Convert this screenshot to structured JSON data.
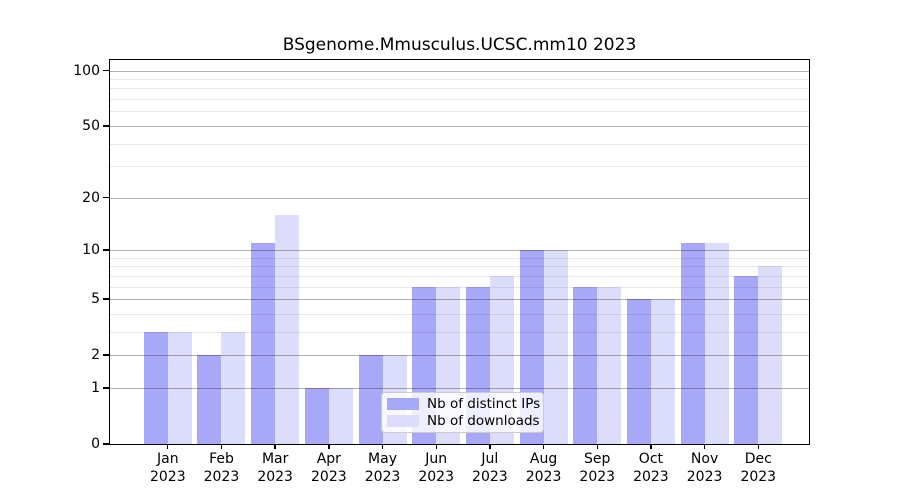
{
  "title": "BSgenome.Mmusculus.UCSC.mm10 2023",
  "chart_data": {
    "type": "bar",
    "title": "BSgenome.Mmusculus.UCSC.mm10 2023",
    "categories": [
      "Jan",
      "Feb",
      "Mar",
      "Apr",
      "May",
      "Jun",
      "Jul",
      "Aug",
      "Sep",
      "Oct",
      "Nov",
      "Dec"
    ],
    "x_tick_year": "2023",
    "series": [
      {
        "name": "Nb of distinct IPs",
        "color": "#a7a8f7",
        "values": [
          3,
          2,
          11,
          1,
          2,
          6,
          6,
          10,
          6,
          5,
          11,
          7
        ]
      },
      {
        "name": "Nb of downloads",
        "color": "#dcddfb",
        "values": [
          3,
          3,
          16,
          1,
          2,
          6,
          7,
          10,
          6,
          5,
          11,
          8
        ]
      }
    ],
    "yscale": "log1p",
    "ylim": [
      0,
      114
    ],
    "y_major_ticks": [
      0,
      1,
      2,
      5,
      10,
      20,
      50,
      100
    ],
    "y_minor_ticks": [
      3,
      4,
      6,
      7,
      8,
      9,
      30,
      40,
      60,
      70,
      80,
      90
    ],
    "grid": "on",
    "legend": {
      "position": "lower center",
      "frame": true
    },
    "colors": {
      "background": "#ffffff",
      "major_grid": "#b2b2b2",
      "minor_grid": "#e9e9e9",
      "axis": "#000000",
      "text": "#000000",
      "legend_border": "#cccccc",
      "legend_bg": "rgba(255,255,255,0.8)"
    }
  }
}
